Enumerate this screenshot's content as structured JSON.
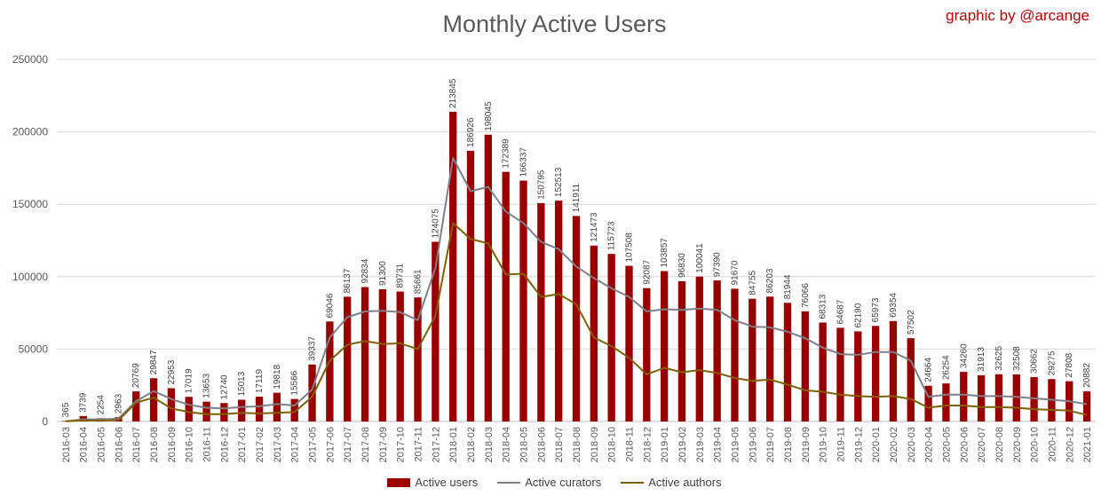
{
  "chart_data": {
    "type": "bar",
    "title": "Monthly Active Users",
    "credit": "graphic by @arcange",
    "ylim": [
      0,
      250000
    ],
    "yticks": [
      0,
      50000,
      100000,
      150000,
      200000,
      250000
    ],
    "grid": true,
    "legend_position": "bottom",
    "categories": [
      "2016-03",
      "2016-04",
      "2016-05",
      "2016-06",
      "2016-07",
      "2016-08",
      "2016-09",
      "2016-10",
      "2016-11",
      "2016-12",
      "2017-01",
      "2017-02",
      "2017-03",
      "2017-04",
      "2017-05",
      "2017-06",
      "2017-07",
      "2017-08",
      "2017-09",
      "2017-10",
      "2017-11",
      "2017-12",
      "2018-01",
      "2018-02",
      "2018-03",
      "2018-04",
      "2018-05",
      "2018-06",
      "2018-07",
      "2018-08",
      "2018-09",
      "2018-10",
      "2018-11",
      "2018-12",
      "2019-01",
      "2019-02",
      "2019-03",
      "2019-04",
      "2019-05",
      "2019-06",
      "2019-07",
      "2019-08",
      "2019-09",
      "2019-10",
      "2019-11",
      "2019-12",
      "2020-01",
      "2020-02",
      "2020-03",
      "2020-04",
      "2020-05",
      "2020-06",
      "2020-07",
      "2020-08",
      "2020-09",
      "2020-10",
      "2020-11",
      "2020-12",
      "2021-01"
    ],
    "series": [
      {
        "name": "Active users",
        "kind": "bar",
        "color": "#990000",
        "values": [
          365,
          3739,
          2254,
          2963,
          20769,
          29847,
          22953,
          17019,
          13653,
          12740,
          15013,
          17119,
          19818,
          15566,
          39337,
          69046,
          86137,
          92834,
          91300,
          89731,
          85661,
          124075,
          213845,
          186926,
          198045,
          172389,
          166337,
          150795,
          152513,
          141911,
          121473,
          115723,
          107508,
          92087,
          103857,
          96830,
          100041,
          97390,
          91670,
          84755,
          86203,
          81944,
          76066,
          68313,
          64687,
          62190,
          65973,
          69354,
          57502,
          24664,
          26254,
          34260,
          31913,
          32625,
          32508,
          30662,
          29275,
          27808,
          20882
        ],
        "labels": [
          "365",
          "3739",
          "2254",
          "2963",
          "20769",
          "29847",
          "22953",
          "17019",
          "13653",
          "12740",
          "15013",
          "17119",
          "19818",
          "15566",
          "39337",
          "69046",
          "86137",
          "92834",
          "91300",
          "89731",
          "85661",
          "124075",
          "213845",
          "186926",
          "198045",
          "172389",
          "166337",
          "150795",
          "152513",
          "141911",
          "121473",
          "115723",
          "107508",
          "92087",
          "103857",
          "96830",
          "100041",
          "97390",
          "91670",
          "84755",
          "86203",
          "81944",
          "76066",
          "68313",
          "64687",
          "62190",
          "65973",
          "69354",
          "57502",
          "24664",
          "26254",
          "34260",
          "31913",
          "32625",
          "32508",
          "30662",
          "29275",
          "27808",
          "20882"
        ]
      },
      {
        "name": "Active curators",
        "kind": "line",
        "color": "#7f7f8a",
        "values": [
          200,
          1500,
          1500,
          2000,
          14000,
          21000,
          15500,
          11500,
          9500,
          9000,
          10000,
          10500,
          12000,
          11000,
          22000,
          58000,
          72000,
          76000,
          76500,
          75500,
          70000,
          106000,
          182000,
          159000,
          162000,
          145000,
          137000,
          124000,
          119000,
          107000,
          99000,
          92000,
          86000,
          76000,
          77500,
          77000,
          78000,
          77000,
          70000,
          65500,
          65000,
          62000,
          57500,
          51000,
          46500,
          46000,
          48000,
          48000,
          42000,
          17000,
          18500,
          18500,
          17500,
          17500,
          17000,
          16000,
          15000,
          14000,
          12000
        ]
      },
      {
        "name": "Active authors",
        "kind": "line",
        "color": "#806000",
        "values": [
          100,
          800,
          700,
          900,
          13000,
          16500,
          9000,
          6500,
          5000,
          5000,
          6000,
          5500,
          6000,
          6500,
          17000,
          42000,
          53000,
          55500,
          53500,
          54000,
          50000,
          73000,
          137000,
          126000,
          123000,
          101500,
          102000,
          86000,
          88000,
          81000,
          58000,
          52000,
          44000,
          32500,
          37000,
          34000,
          35500,
          33500,
          30000,
          28000,
          29000,
          25500,
          21500,
          20500,
          18500,
          17500,
          17000,
          17500,
          15500,
          9500,
          11000,
          11000,
          10000,
          10000,
          9500,
          8500,
          8000,
          7500,
          4500
        ]
      }
    ]
  }
}
